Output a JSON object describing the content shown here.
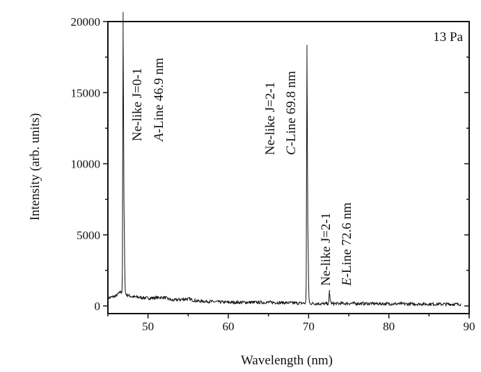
{
  "chart_data": {
    "type": "line",
    "title": "",
    "xlabel": "Wavelength (nm)",
    "ylabel": "Intensity (arb. units)",
    "xlim": [
      45,
      90
    ],
    "ylim": [
      -500,
      20000
    ],
    "x_ticks": [
      50,
      60,
      70,
      80,
      90
    ],
    "y_ticks": [
      0,
      5000,
      10000,
      15000,
      20000
    ],
    "grid": false,
    "legend": "none",
    "pressure_label": "13 Pa",
    "baseline": {
      "x": [
        45,
        46.0,
        46.6,
        47.3,
        48,
        50,
        52,
        53,
        55,
        56,
        60,
        65,
        69,
        72,
        75,
        80,
        85,
        89
      ],
      "y": [
        550,
        700,
        1000,
        800,
        650,
        550,
        600,
        400,
        500,
        350,
        250,
        250,
        200,
        150,
        180,
        150,
        130,
        120
      ]
    },
    "peaks": [
      {
        "x": 46.9,
        "y": 19000,
        "shoulder": 14000,
        "annotation_lines": [
          "Ne-like J=0-1",
          "A-Line 46.9 nm"
        ]
      },
      {
        "x": 69.8,
        "y": 17600,
        "shoulder": 11500,
        "annotation_lines": [
          "Ne-like J=2-1",
          "C-Line 69.8 nm"
        ]
      },
      {
        "x": 72.6,
        "y": 900,
        "shoulder": 500,
        "annotation_lines": [
          "Ne-like J=2-1",
          "E-Line 72.6 nm"
        ]
      }
    ],
    "line_color": "#111111"
  }
}
